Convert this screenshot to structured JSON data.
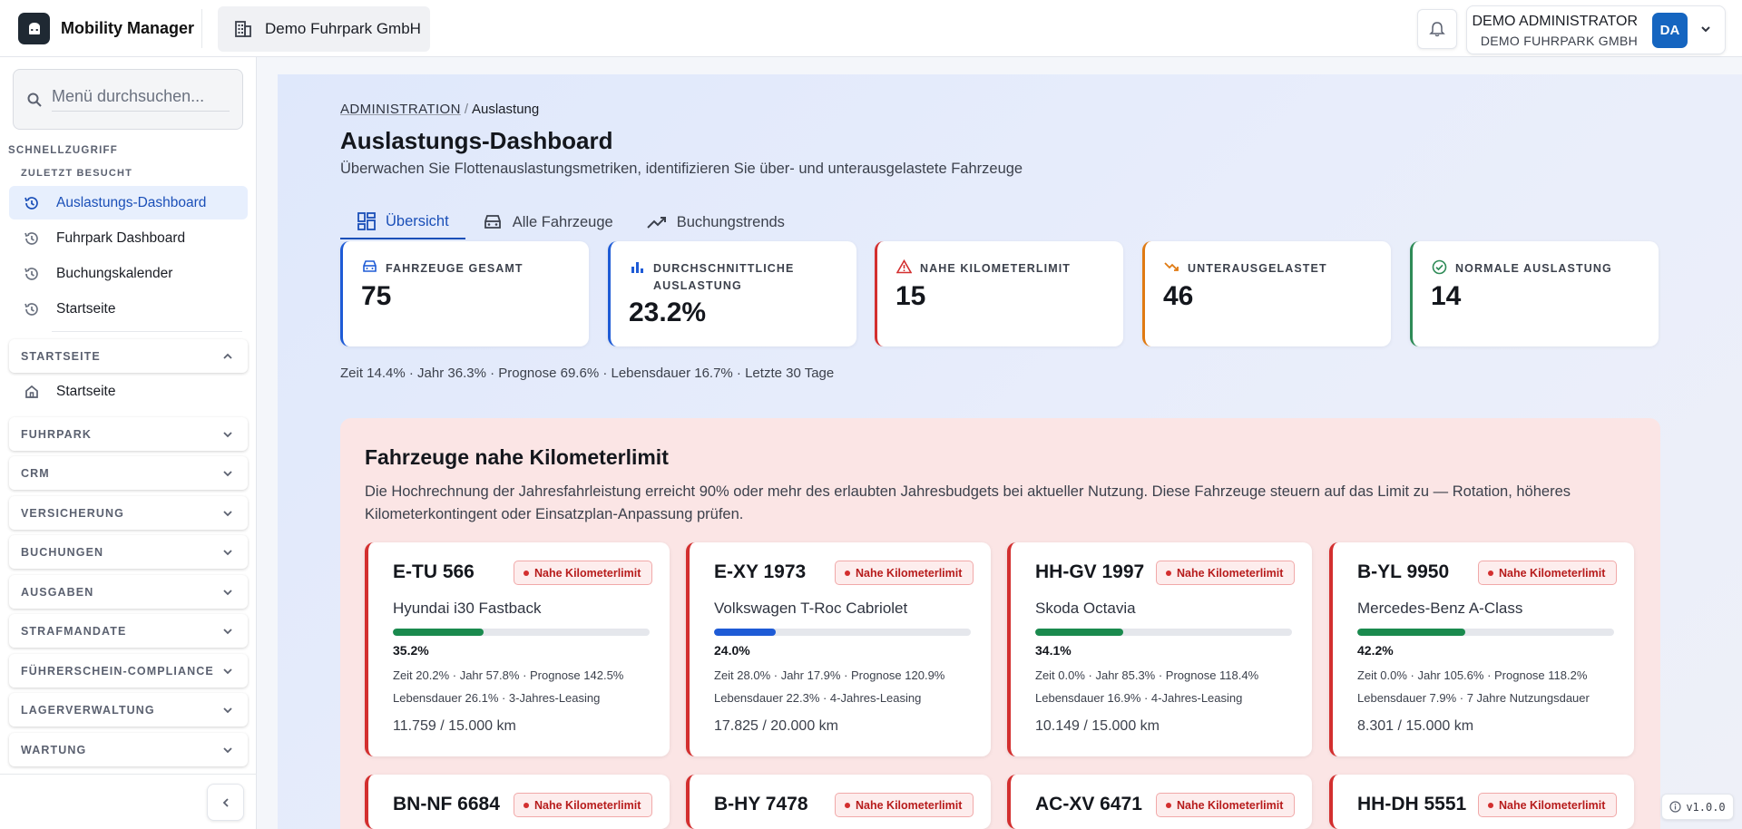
{
  "app": {
    "name": "Mobility Manager",
    "company": "Demo Fuhrpark GmbH"
  },
  "user": {
    "name": "DEMO ADMINISTRATOR",
    "company": "DEMO FUHRPARK GMBH",
    "initials": "DA"
  },
  "sidebar": {
    "search_placeholder": "Menü durchsuchen...",
    "quick_access_label": "SCHNELLZUGRIFF",
    "recent_label": "ZULETZT BESUCHT",
    "recent_items": [
      {
        "label": "Auslastungs-Dashboard",
        "active": true
      },
      {
        "label": "Fuhrpark Dashboard",
        "active": false
      },
      {
        "label": "Buchungskalender",
        "active": false
      },
      {
        "label": "Startseite",
        "active": false
      }
    ],
    "startseite_group": {
      "label": "STARTSEITE",
      "item": "Startseite"
    },
    "groups": [
      "FUHRPARK",
      "CRM",
      "VERSICHERUNG",
      "BUCHUNGEN",
      "AUSGABEN",
      "STRAFMANDATE",
      "FÜHRERSCHEIN-COMPLIANCE",
      "LAGERVERWALTUNG",
      "WARTUNG"
    ]
  },
  "breadcrumb": {
    "root": "ADMINISTRATION",
    "current": "Auslastung"
  },
  "page": {
    "title": "Auslastungs-Dashboard",
    "subtitle": "Überwachen Sie Flottenauslastungsmetriken, identifizieren Sie über- und unterausgelastete Fahrzeuge"
  },
  "tabs": [
    {
      "label": "Übersicht",
      "icon": "dashboard-icon",
      "active": true
    },
    {
      "label": "Alle Fahrzeuge",
      "icon": "car-icon",
      "active": false
    },
    {
      "label": "Buchungstrends",
      "icon": "trending-up-icon",
      "active": false
    }
  ],
  "stats": [
    {
      "label": "FAHRZEUGE GESAMT",
      "value": "75",
      "color": "#1e5bd6",
      "icon": "car-icon"
    },
    {
      "label": "DURCHSCHNITTLICHE AUSLASTUNG",
      "value": "23.2%",
      "color": "#1e5bd6",
      "icon": "bar-chart-icon"
    },
    {
      "label": "NAHE KILOMETERLIMIT",
      "value": "15",
      "color": "#d32f2f",
      "icon": "warning-icon"
    },
    {
      "label": "UNTERAUSGELASTET",
      "value": "46",
      "color": "#e07a12",
      "icon": "trending-down-icon"
    },
    {
      "label": "NORMALE AUSLASTUNG",
      "value": "14",
      "color": "#2e8b57",
      "icon": "check-circle-icon"
    }
  ],
  "summary": "Zeit 14.4% · Jahr 36.3% · Prognose 69.6% · Lebensdauer 16.7% · Letzte 30 Tage",
  "alert": {
    "title": "Fahrzeuge nahe Kilometerlimit",
    "description": "Die Hochrechnung der Jahresfahrleistung erreicht 90% oder mehr des erlaubten Jahresbudgets bei aktueller Nutzung. Diese Fahrzeuge steuern auf das Limit zu — Rotation, höheres Kilometerkontingent oder Einsatzplan-Anpassung prüfen."
  },
  "vehicles": [
    {
      "plate": "E-TU 566",
      "badge": "Nahe Kilometerlimit",
      "model": "Hyundai i30 Fastback",
      "pct": "35.2%",
      "fill": 0.352,
      "fill_color": "#1a8a4e",
      "line1": "Zeit 20.2% · Jahr 57.8% · Prognose 142.5%",
      "line2": "Lebensdauer 26.1% · 3-Jahres-Leasing",
      "km": "11.759 / 15.000 km"
    },
    {
      "plate": "E-XY 1973",
      "badge": "Nahe Kilometerlimit",
      "model": "Volkswagen T-Roc Cabriolet",
      "pct": "24.0%",
      "fill": 0.24,
      "fill_color": "#1e5bd6",
      "line1": "Zeit 28.0% · Jahr 17.9% · Prognose 120.9%",
      "line2": "Lebensdauer 22.3% · 4-Jahres-Leasing",
      "km": "17.825 / 20.000 km"
    },
    {
      "plate": "HH-GV 1997",
      "badge": "Nahe Kilometerlimit",
      "model": "Skoda Octavia",
      "pct": "34.1%",
      "fill": 0.341,
      "fill_color": "#1a8a4e",
      "line1": "Zeit 0.0% · Jahr 85.3% · Prognose 118.4%",
      "line2": "Lebensdauer 16.9% · 4-Jahres-Leasing",
      "km": "10.149 / 15.000 km"
    },
    {
      "plate": "B-YL 9950",
      "badge": "Nahe Kilometerlimit",
      "model": "Mercedes-Benz A-Class",
      "pct": "42.2%",
      "fill": 0.422,
      "fill_color": "#1a8a4e",
      "line1": "Zeit 0.0% · Jahr 105.6% · Prognose 118.2%",
      "line2": "Lebensdauer 7.9% · 7 Jahre Nutzungsdauer",
      "km": "8.301 / 15.000 km"
    },
    {
      "plate": "BN-NF 6684",
      "badge": "Nahe Kilometerlimit"
    },
    {
      "plate": "B-HY 7478",
      "badge": "Nahe Kilometerlimit"
    },
    {
      "plate": "AC-XV 6471",
      "badge": "Nahe Kilometerlimit"
    },
    {
      "plate": "HH-DH 5551",
      "badge": "Nahe Kilometerlimit"
    }
  ],
  "version": "v1.0.0"
}
